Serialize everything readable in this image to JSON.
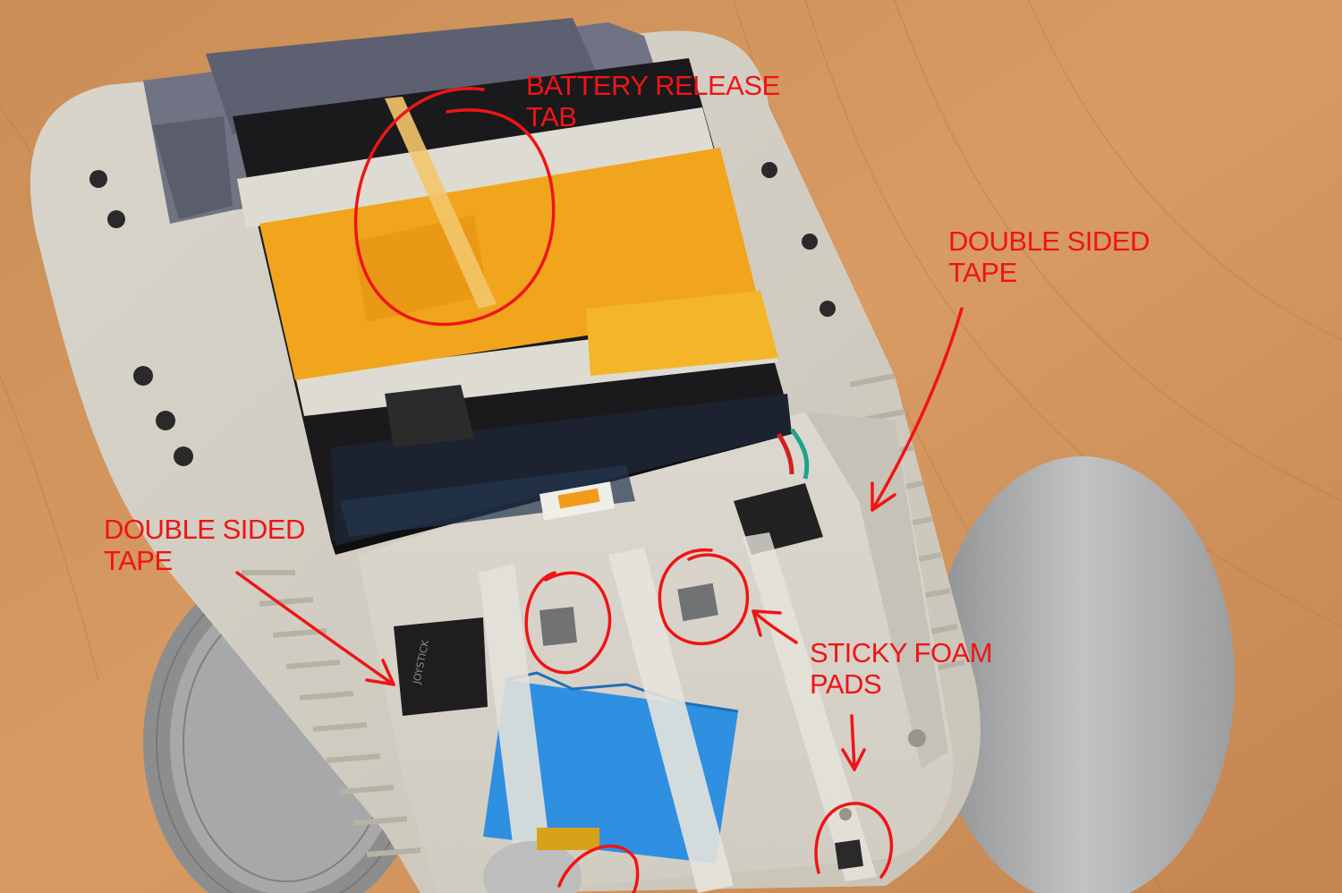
{
  "annotation_color": "#f01414",
  "annotations": {
    "battery_tab": {
      "line1": "BATTERY RELEASE",
      "line2": "TAB"
    },
    "tape_right": {
      "line1": "DOUBLE SIDED",
      "line2": "TAPE"
    },
    "tape_left": {
      "line1": "DOUBLE SIDED",
      "line2": "TAPE"
    },
    "foam_pads": {
      "line1": "STICKY FOAM",
      "line2": "PADS"
    }
  },
  "parts": {
    "joystick_label": "JOYSTICK"
  }
}
